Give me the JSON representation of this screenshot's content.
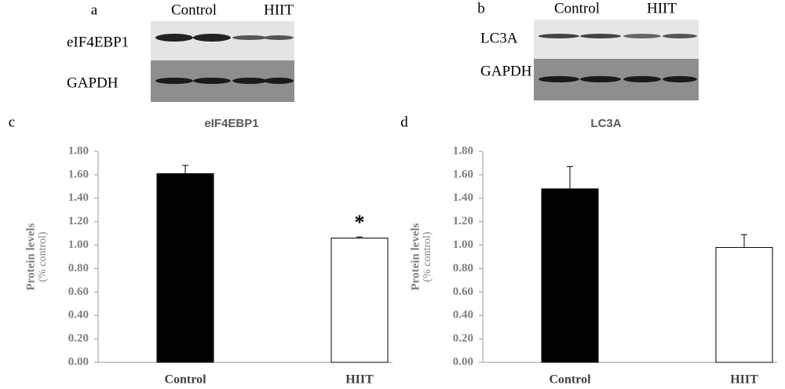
{
  "blots": [
    {
      "panel": "a",
      "groups": [
        "Control",
        "HIIT"
      ],
      "rows": [
        "eIF4EBP1",
        "GAPDH"
      ]
    },
    {
      "panel": "b",
      "groups": [
        "Control",
        "HIIT"
      ],
      "rows": [
        "LC3A",
        "GAPDH"
      ]
    }
  ],
  "chart_data": [
    {
      "type": "bar",
      "panel": "c",
      "title": "eIF4EBP1",
      "ylabel": "Protein levels",
      "ylabel_note": "(% control)",
      "categories": [
        "Control",
        "HIIT"
      ],
      "values": [
        1.61,
        1.06
      ],
      "errors": [
        0.07,
        0.01
      ],
      "colors": [
        "#000000",
        "#ffffff"
      ],
      "annotation": {
        "text": "*",
        "category": "HIIT"
      },
      "ylim": [
        0,
        1.8
      ],
      "yticks": [
        {
          "value": 0,
          "label": "0.00"
        },
        {
          "value": 0.2,
          "label": "0.20"
        },
        {
          "value": 0.4,
          "label": "0.40"
        },
        {
          "value": 0.6,
          "label": "0.60"
        },
        {
          "value": 0.8,
          "label": "0.80"
        },
        {
          "value": 1.0,
          "label": "1.00"
        },
        {
          "value": 1.2,
          "label": "1.20"
        },
        {
          "value": 1.4,
          "label": "1.40"
        },
        {
          "value": 1.6,
          "label": "1.60"
        },
        {
          "value": 1.8,
          "label": "1.80"
        }
      ]
    },
    {
      "type": "bar",
      "panel": "d",
      "title": "LC3A",
      "ylabel": "Protein levels",
      "ylabel_note": "(% control)",
      "categories": [
        "Control",
        "HIIT"
      ],
      "values": [
        1.48,
        0.98
      ],
      "errors": [
        0.19,
        0.11
      ],
      "colors": [
        "#000000",
        "#ffffff"
      ],
      "ylim": [
        0,
        1.8
      ],
      "yticks": [
        {
          "value": 0,
          "label": "0.00"
        },
        {
          "value": 0.2,
          "label": "0.20"
        },
        {
          "value": 0.4,
          "label": "0.40"
        },
        {
          "value": 0.6,
          "label": "0.60"
        },
        {
          "value": 0.8,
          "label": "0.80"
        },
        {
          "value": 1.0,
          "label": "1.00"
        },
        {
          "value": 1.2,
          "label": "1.20"
        },
        {
          "value": 1.4,
          "label": "1.40"
        },
        {
          "value": 1.6,
          "label": "1.60"
        },
        {
          "value": 1.8,
          "label": "1.80"
        }
      ]
    }
  ]
}
